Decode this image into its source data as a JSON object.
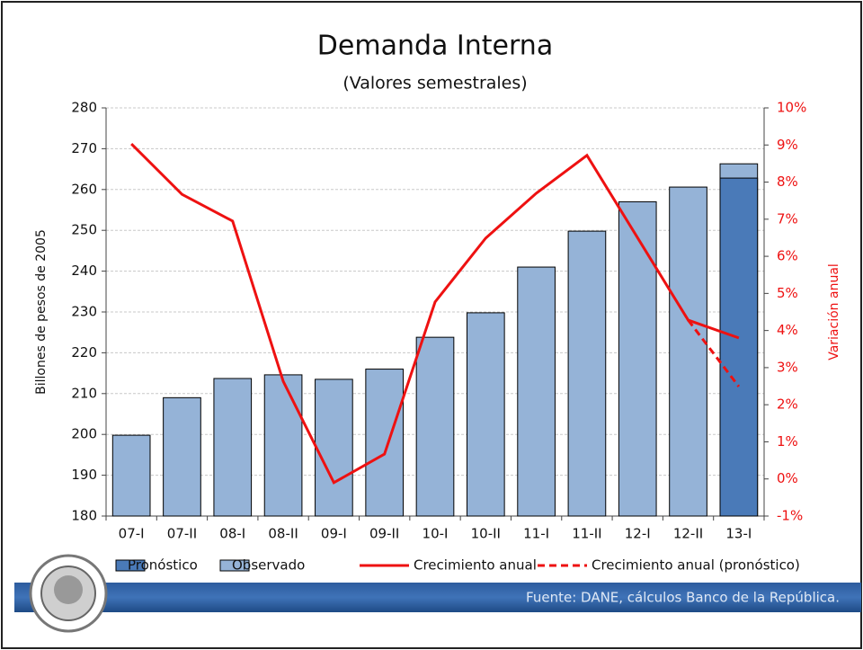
{
  "chart_data": {
    "type": "bar",
    "title": "Demanda Interna",
    "subtitle": "(Valores semestrales)",
    "ylabel": "Billones de pesos de 2005",
    "y2label": "Variación anual",
    "source": "Fuente: DANE, cálculos Banco de la República.",
    "categories": [
      "07-I",
      "07-II",
      "08-I",
      "08-II",
      "09-I",
      "09-II",
      "10-I",
      "10-II",
      "11-I",
      "11-II",
      "12-I",
      "12-II",
      "13-I"
    ],
    "ylim": [
      180,
      280
    ],
    "yticks": [
      180,
      190,
      200,
      210,
      220,
      230,
      240,
      250,
      260,
      270,
      280
    ],
    "y2lim": [
      -1,
      10
    ],
    "y2ticks": [
      {
        "value": -1,
        "label": "-1%"
      },
      {
        "value": 0,
        "label": "0%"
      },
      {
        "value": 1,
        "label": "1%"
      },
      {
        "value": 2,
        "label": "2%"
      },
      {
        "value": 3,
        "label": "3%"
      },
      {
        "value": 4,
        "label": "4%"
      },
      {
        "value": 5,
        "label": "5%"
      },
      {
        "value": 6,
        "label": "6%"
      },
      {
        "value": 7,
        "label": "7%"
      },
      {
        "value": 8,
        "label": "8%"
      },
      {
        "value": 9,
        "label": "9%"
      },
      {
        "value": 10,
        "label": "10%"
      }
    ],
    "grid": true,
    "legend": "bottom",
    "series": [
      {
        "name": "Pronóstico",
        "type": "bar",
        "color": "#4a7ab8",
        "values": [
          null,
          null,
          null,
          null,
          null,
          null,
          null,
          null,
          null,
          null,
          null,
          null,
          262.8
        ]
      },
      {
        "name": "Observado",
        "type": "bar",
        "color": "#95b3d7",
        "values": [
          199.8,
          209,
          213.7,
          214.6,
          213.5,
          216,
          223.8,
          229.8,
          241,
          249.8,
          257,
          260.6,
          266.3
        ]
      },
      {
        "name": "Crecimiento anual",
        "type": "line",
        "axis": "y2",
        "color": "#ee1111",
        "dash": false,
        "values": [
          9.03,
          7.67,
          6.95,
          2.63,
          -0.1,
          0.67,
          4.77,
          6.49,
          7.7,
          8.72,
          6.5,
          4.28,
          3.8
        ]
      },
      {
        "name": "Crecimiento anual (pronóstico)",
        "type": "line",
        "axis": "y2",
        "color": "#ee1111",
        "dash": true,
        "values": [
          null,
          null,
          null,
          null,
          null,
          null,
          null,
          null,
          null,
          null,
          null,
          4.28,
          2.49
        ]
      }
    ]
  }
}
